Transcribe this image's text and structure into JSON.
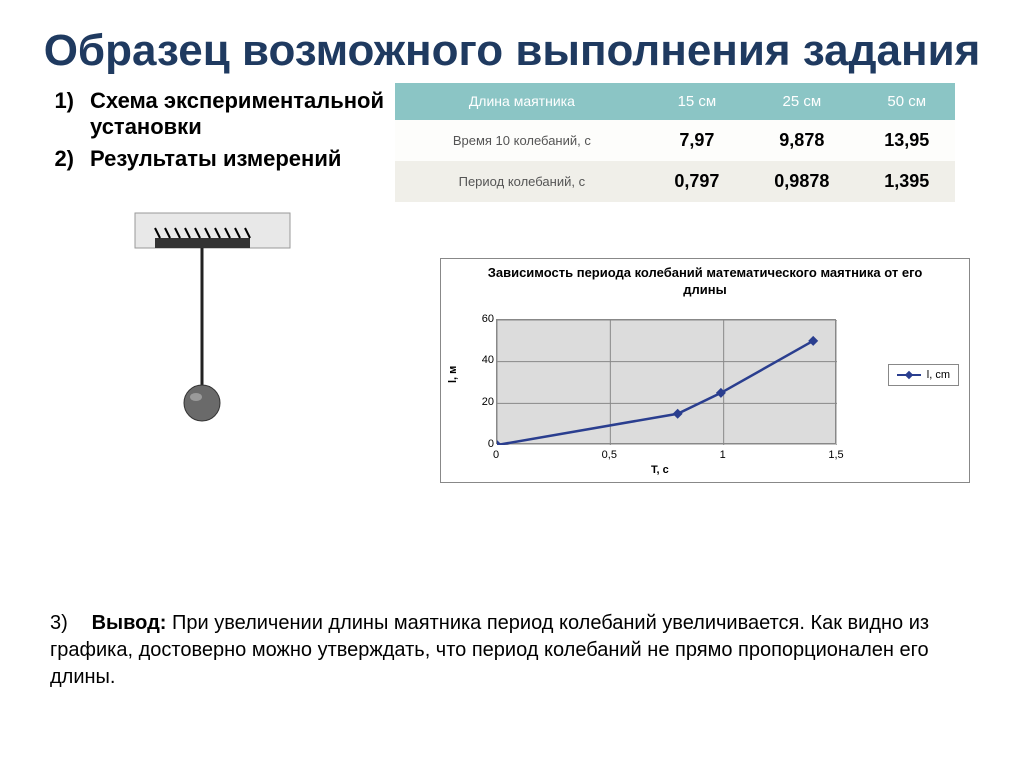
{
  "title": "Образец возможного выполнения задания",
  "list": [
    {
      "n": "1)",
      "text": "Схема экспериментальной установки"
    },
    {
      "n": "2)",
      "text": "Результаты измерений"
    }
  ],
  "table": {
    "header": [
      "Длина маятника",
      "15 см",
      "25 см",
      "50 см"
    ],
    "rows": [
      {
        "label": "Время 10 колебаний, с",
        "cells": [
          "7,97",
          "9,878",
          "13,95"
        ]
      },
      {
        "label": "Период колебаний, с",
        "cells": [
          "0,797",
          "0,9878",
          "1,395"
        ]
      }
    ]
  },
  "chart": {
    "title": "Зависимость периода колебаний математического маятника от его длины",
    "ylabel": "l, м",
    "xlabel": "T, c",
    "legend": "l, cm",
    "xlim": [
      0,
      1.5
    ],
    "xticks": [
      0,
      0.5,
      1,
      1.5
    ],
    "ylim": [
      0,
      60
    ],
    "yticks": [
      0,
      20,
      40,
      60
    ],
    "points": [
      {
        "x": 0,
        "y": 0
      },
      {
        "x": 0.797,
        "y": 15
      },
      {
        "x": 0.9878,
        "y": 25
      },
      {
        "x": 1.395,
        "y": 50
      }
    ],
    "plot_bg": "#dcdcdc",
    "line_color": "#2a3e8f"
  },
  "conclusion": {
    "n": "3)",
    "label": "Вывод:",
    "text": "При увеличении длины маятника период колебаний увеличивается. Как видно из графика, достоверно можно утверждать, что период колебаний не прямо пропорционален его длины."
  }
}
